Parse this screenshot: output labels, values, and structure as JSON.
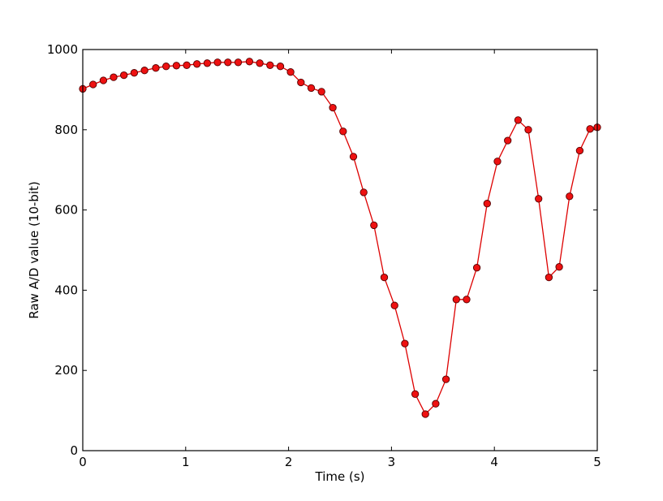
{
  "chart_data": {
    "type": "line",
    "title": "",
    "xlabel": "Time (s)",
    "ylabel": "Raw A/D value (10-bit)",
    "xlim": [
      0,
      5
    ],
    "ylim": [
      0,
      1000
    ],
    "xticks": [
      0,
      1,
      2,
      3,
      4,
      5
    ],
    "yticks": [
      0,
      200,
      400,
      600,
      800,
      1000
    ],
    "xtick_labels": [
      "0",
      "1",
      "2",
      "3",
      "4",
      "5"
    ],
    "ytick_labels": [
      "0",
      "200",
      "400",
      "600",
      "800",
      "1000"
    ],
    "grid": false,
    "legend": "none",
    "colors": {
      "line": "#dd0000",
      "marker_fill": "#ee1111",
      "marker_edge": "#550000",
      "axes": "#000000"
    },
    "series": [
      {
        "marker": "circle",
        "x": [
          0.0,
          0.1,
          0.2,
          0.3,
          0.4,
          0.5,
          0.6,
          0.71,
          0.81,
          0.91,
          1.01,
          1.11,
          1.21,
          1.31,
          1.41,
          1.51,
          1.62,
          1.72,
          1.82,
          1.92,
          2.02,
          2.12,
          2.22,
          2.32,
          2.43,
          2.53,
          2.63,
          2.73,
          2.83,
          2.93,
          3.03,
          3.13,
          3.23,
          3.33,
          3.43,
          3.53,
          3.63,
          3.73,
          3.83,
          3.93,
          4.03,
          4.13,
          4.23,
          4.33,
          4.43,
          4.53,
          4.63,
          4.73,
          4.83,
          4.93,
          5.0
        ],
        "y": [
          902,
          913,
          923,
          931,
          936,
          942,
          948,
          954,
          958,
          960,
          961,
          964,
          966,
          968,
          968,
          968,
          970,
          966,
          961,
          958,
          944,
          918,
          904,
          895,
          855,
          796,
          733,
          644,
          562,
          432,
          362,
          267,
          141,
          91,
          117,
          178,
          377,
          377,
          456,
          616,
          721,
          773,
          824,
          800,
          628,
          432,
          458,
          634,
          748,
          802,
          806
        ]
      }
    ]
  }
}
